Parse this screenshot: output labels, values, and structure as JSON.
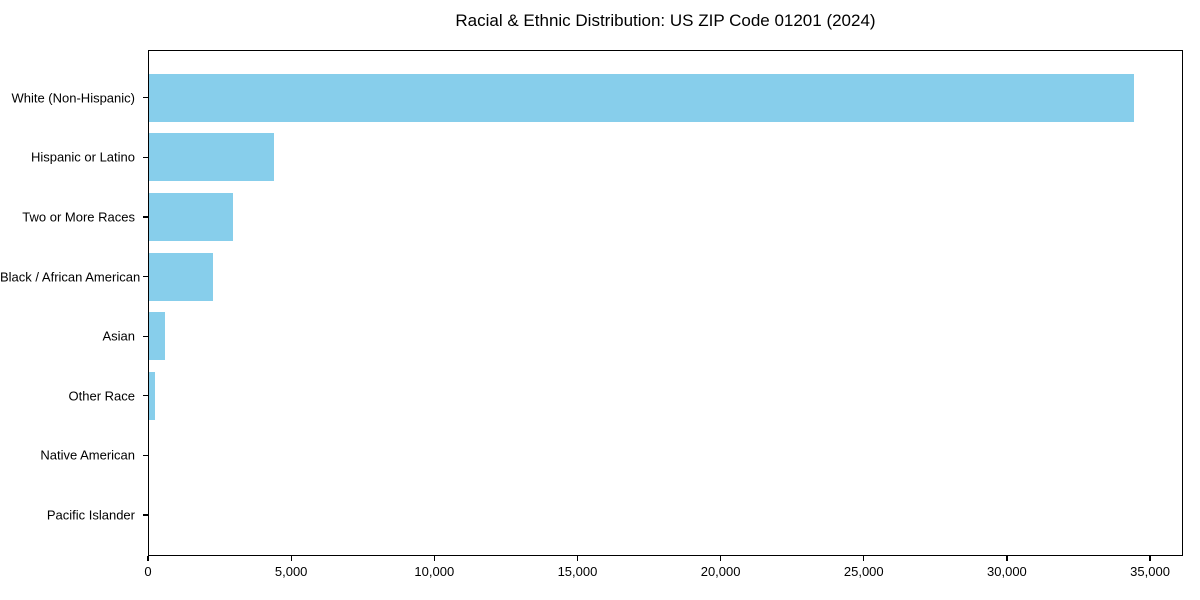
{
  "chart_data": {
    "type": "bar",
    "orientation": "horizontal",
    "title": "Racial & Ethnic Distribution: US ZIP Code 01201 (2024)",
    "categories": [
      "White (Non-Hispanic)",
      "Hispanic or Latino",
      "Two or More Races",
      "Black / African American",
      "Asian",
      "Other Race",
      "Native American",
      "Pacific Islander"
    ],
    "values": [
      34450,
      4400,
      2970,
      2270,
      580,
      260,
      0,
      0
    ],
    "xlabel": "",
    "ylabel": "",
    "xlim": [
      0,
      36150
    ],
    "xticks": [
      0,
      5000,
      10000,
      15000,
      20000,
      25000,
      30000,
      35000
    ],
    "xtick_labels": [
      "0",
      "5,000",
      "10,000",
      "15,000",
      "20,000",
      "25,000",
      "30,000",
      "35,000"
    ],
    "bar_color": "#87CEEB",
    "background_color": "#ffffff",
    "frame_color": "#000000",
    "grid": false,
    "legend": null
  }
}
